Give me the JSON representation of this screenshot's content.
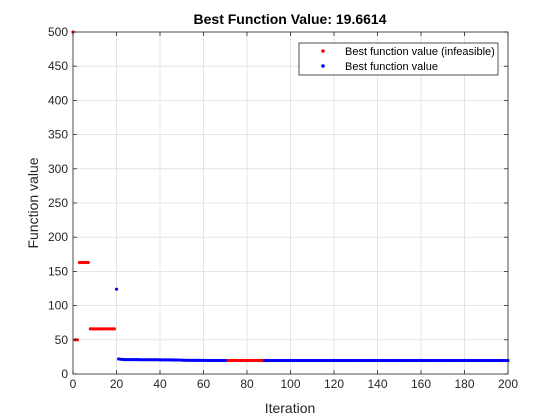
{
  "chart_data": {
    "type": "scatter",
    "title": "Best Function Value: 19.6614",
    "xlabel": "Iteration",
    "ylabel": "Function value",
    "xlim": [
      0,
      200
    ],
    "ylim": [
      0,
      500
    ],
    "xticks": [
      0,
      20,
      40,
      60,
      80,
      100,
      120,
      140,
      160,
      180,
      200
    ],
    "yticks": [
      0,
      50,
      100,
      150,
      200,
      250,
      300,
      350,
      400,
      450,
      500
    ],
    "grid": true,
    "legend_position": "top-right",
    "series": [
      {
        "name": "Best function value (infeasible)",
        "color": "#ff0000",
        "points": [
          [
            0,
            500
          ],
          [
            1,
            50
          ],
          [
            2,
            50
          ],
          [
            3,
            163
          ],
          [
            4,
            163
          ],
          [
            5,
            163
          ],
          [
            6,
            163
          ],
          [
            7,
            163
          ],
          [
            8,
            66
          ],
          [
            9,
            66
          ],
          [
            10,
            66
          ],
          [
            11,
            66
          ],
          [
            12,
            66
          ],
          [
            13,
            66
          ],
          [
            14,
            66
          ],
          [
            15,
            66
          ],
          [
            16,
            66
          ],
          [
            17,
            66
          ],
          [
            18,
            66
          ],
          [
            19,
            66
          ],
          [
            71,
            19.7
          ],
          [
            72,
            19.7
          ],
          [
            73,
            19.7
          ],
          [
            74,
            19.7
          ],
          [
            75,
            19.7
          ],
          [
            76,
            19.7
          ],
          [
            77,
            19.7
          ],
          [
            78,
            19.7
          ],
          [
            79,
            19.7
          ],
          [
            80,
            19.7
          ],
          [
            81,
            19.7
          ],
          [
            82,
            19.7
          ],
          [
            83,
            19.7
          ],
          [
            84,
            19.7
          ],
          [
            85,
            19.7
          ],
          [
            86,
            19.7
          ],
          [
            87,
            19.7
          ]
        ]
      },
      {
        "name": "Best function value",
        "color": "#0000ff",
        "points": [
          [
            20,
            124
          ],
          [
            21,
            22
          ],
          [
            22,
            21.5
          ],
          [
            23,
            21.2
          ],
          [
            24,
            21
          ],
          [
            25,
            21
          ],
          [
            26,
            21
          ],
          [
            27,
            21
          ],
          [
            28,
            21
          ],
          [
            29,
            21
          ],
          [
            30,
            21
          ],
          [
            31,
            20.9
          ],
          [
            32,
            20.9
          ],
          [
            33,
            20.9
          ],
          [
            34,
            20.8
          ],
          [
            35,
            20.8
          ],
          [
            36,
            20.8
          ],
          [
            37,
            20.8
          ],
          [
            38,
            20.8
          ],
          [
            39,
            20.8
          ],
          [
            40,
            20.7
          ],
          [
            41,
            20.7
          ],
          [
            42,
            20.7
          ],
          [
            43,
            20.7
          ],
          [
            44,
            20.6
          ],
          [
            45,
            20.6
          ],
          [
            46,
            20.5
          ],
          [
            47,
            20.5
          ],
          [
            48,
            20.5
          ],
          [
            49,
            20.4
          ],
          [
            50,
            20.3
          ],
          [
            51,
            20.1
          ],
          [
            52,
            20
          ],
          [
            53,
            20
          ],
          [
            54,
            19.9
          ],
          [
            55,
            19.9
          ],
          [
            56,
            19.9
          ],
          [
            57,
            19.9
          ],
          [
            58,
            19.9
          ],
          [
            59,
            19.9
          ],
          [
            60,
            19.9
          ],
          [
            61,
            19.8
          ],
          [
            62,
            19.8
          ],
          [
            63,
            19.8
          ],
          [
            64,
            19.8
          ],
          [
            65,
            19.8
          ],
          [
            66,
            19.8
          ],
          [
            67,
            19.8
          ],
          [
            68,
            19.8
          ],
          [
            69,
            19.8
          ],
          [
            70,
            19.8
          ],
          [
            88,
            19.7
          ],
          [
            89,
            19.7
          ],
          [
            90,
            19.7
          ],
          [
            91,
            19.7
          ],
          [
            92,
            19.7
          ],
          [
            93,
            19.7
          ],
          [
            94,
            19.7
          ],
          [
            95,
            19.7
          ],
          [
            96,
            19.7
          ],
          [
            97,
            19.7
          ],
          [
            98,
            19.7
          ],
          [
            99,
            19.7
          ],
          [
            100,
            19.7
          ],
          [
            101,
            19.7
          ],
          [
            102,
            19.7
          ],
          [
            103,
            19.7
          ],
          [
            104,
            19.7
          ],
          [
            105,
            19.7
          ],
          [
            106,
            19.7
          ],
          [
            107,
            19.7
          ],
          [
            108,
            19.7
          ],
          [
            109,
            19.7
          ],
          [
            110,
            19.7
          ],
          [
            111,
            19.7
          ],
          [
            112,
            19.7
          ],
          [
            113,
            19.7
          ],
          [
            114,
            19.7
          ],
          [
            115,
            19.7
          ],
          [
            116,
            19.7
          ],
          [
            117,
            19.7
          ],
          [
            118,
            19.7
          ],
          [
            119,
            19.7
          ],
          [
            120,
            19.7
          ],
          [
            121,
            19.7
          ],
          [
            122,
            19.7
          ],
          [
            123,
            19.7
          ],
          [
            124,
            19.7
          ],
          [
            125,
            19.7
          ],
          [
            126,
            19.7
          ],
          [
            127,
            19.7
          ],
          [
            128,
            19.7
          ],
          [
            129,
            19.7
          ],
          [
            130,
            19.7
          ],
          [
            131,
            19.7
          ],
          [
            132,
            19.7
          ],
          [
            133,
            19.7
          ],
          [
            134,
            19.7
          ],
          [
            135,
            19.7
          ],
          [
            136,
            19.7
          ],
          [
            137,
            19.7
          ],
          [
            138,
            19.7
          ],
          [
            139,
            19.7
          ],
          [
            140,
            19.7
          ],
          [
            141,
            19.7
          ],
          [
            142,
            19.7
          ],
          [
            143,
            19.7
          ],
          [
            144,
            19.7
          ],
          [
            145,
            19.7
          ],
          [
            146,
            19.7
          ],
          [
            147,
            19.7
          ],
          [
            148,
            19.7
          ],
          [
            149,
            19.7
          ],
          [
            150,
            19.7
          ],
          [
            151,
            19.7
          ],
          [
            152,
            19.7
          ],
          [
            153,
            19.7
          ],
          [
            154,
            19.7
          ],
          [
            155,
            19.7
          ],
          [
            156,
            19.7
          ],
          [
            157,
            19.7
          ],
          [
            158,
            19.7
          ],
          [
            159,
            19.7
          ],
          [
            160,
            19.7
          ],
          [
            161,
            19.7
          ],
          [
            162,
            19.7
          ],
          [
            163,
            19.7
          ],
          [
            164,
            19.7
          ],
          [
            165,
            19.7
          ],
          [
            166,
            19.7
          ],
          [
            167,
            19.7
          ],
          [
            168,
            19.7
          ],
          [
            169,
            19.7
          ],
          [
            170,
            19.7
          ],
          [
            171,
            19.7
          ],
          [
            172,
            19.7
          ],
          [
            173,
            19.7
          ],
          [
            174,
            19.7
          ],
          [
            175,
            19.7
          ],
          [
            176,
            19.7
          ],
          [
            177,
            19.7
          ],
          [
            178,
            19.7
          ],
          [
            179,
            19.7
          ],
          [
            180,
            19.7
          ],
          [
            181,
            19.7
          ],
          [
            182,
            19.7
          ],
          [
            183,
            19.7
          ],
          [
            184,
            19.7
          ],
          [
            185,
            19.7
          ],
          [
            186,
            19.7
          ],
          [
            187,
            19.7
          ],
          [
            188,
            19.7
          ],
          [
            189,
            19.7
          ],
          [
            190,
            19.7
          ],
          [
            191,
            19.7
          ],
          [
            192,
            19.7
          ],
          [
            193,
            19.7
          ],
          [
            194,
            19.7
          ],
          [
            195,
            19.7
          ],
          [
            196,
            19.7
          ],
          [
            197,
            19.7
          ],
          [
            198,
            19.7
          ],
          [
            199,
            19.7
          ],
          [
            200,
            19.7
          ]
        ]
      }
    ]
  }
}
